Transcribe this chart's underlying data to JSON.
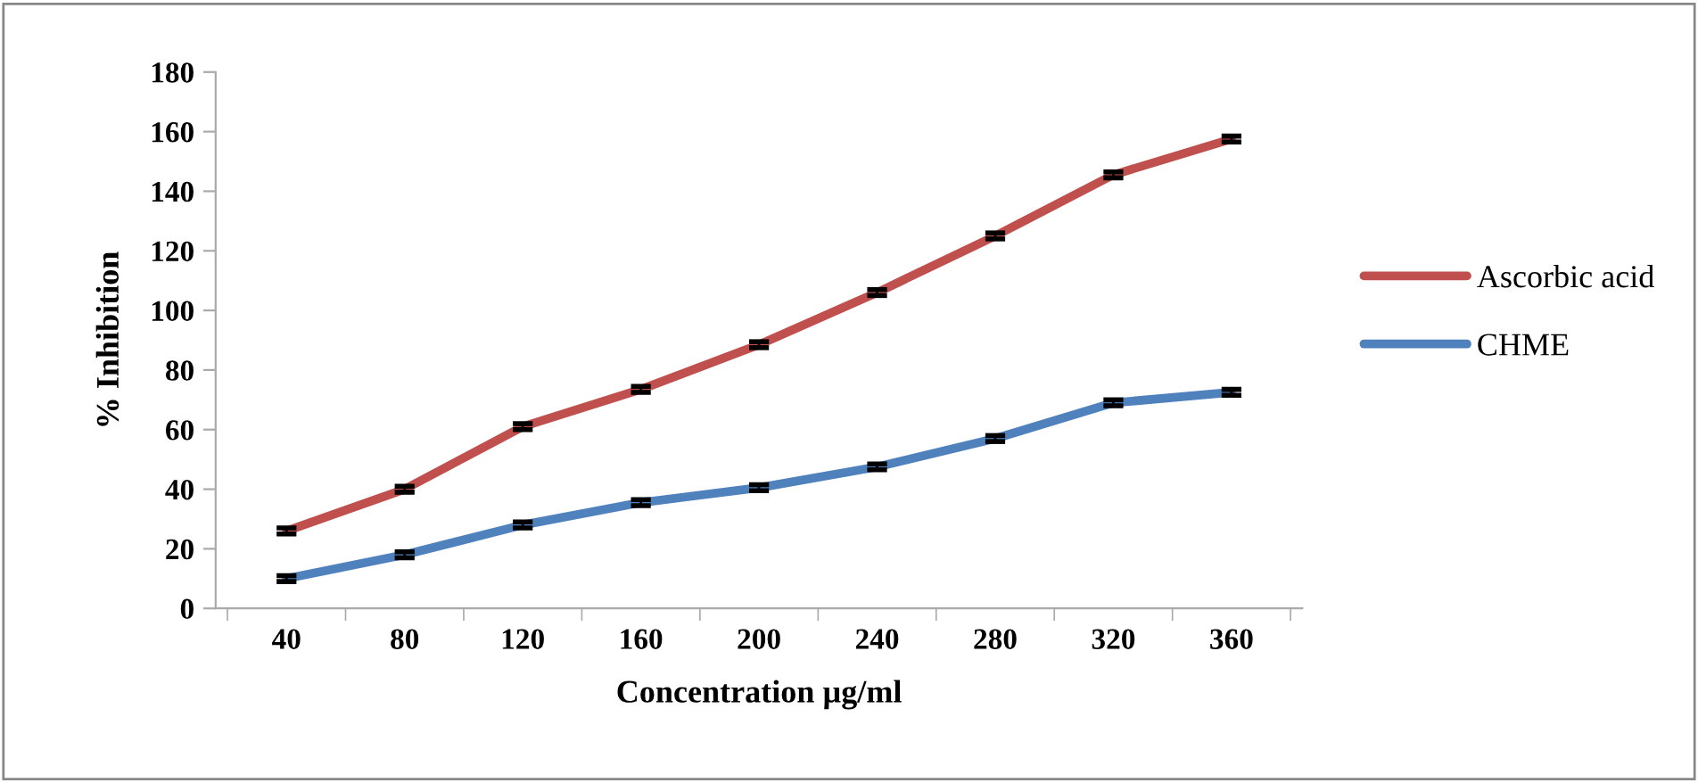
{
  "chart_data": {
    "type": "line",
    "xlabel": "Concentration µg/ml",
    "ylabel": "% Inhibition",
    "categories": [
      "40",
      "80",
      "120",
      "160",
      "200",
      "240",
      "280",
      "320",
      "360"
    ],
    "series": [
      {
        "name": "Ascorbic acid",
        "color": "#c0504d",
        "values": [
          26,
          40,
          61,
          73.5,
          88.5,
          106,
          125,
          145.5,
          157.5
        ],
        "errors": [
          1,
          1,
          1,
          1,
          1,
          1,
          1,
          1,
          1
        ]
      },
      {
        "name": "CHME",
        "color": "#4f81bd",
        "values": [
          10,
          18,
          28,
          35.5,
          40.5,
          47.5,
          57,
          69,
          72.5
        ],
        "errors": [
          1,
          1,
          1,
          1,
          1,
          1,
          1,
          1,
          1
        ]
      }
    ],
    "ylim": [
      0,
      180
    ],
    "yticks": [
      0,
      20,
      40,
      60,
      80,
      100,
      120,
      140,
      160,
      180
    ],
    "grid": false,
    "legend": "right",
    "marker": "none",
    "line_style": "solid"
  }
}
